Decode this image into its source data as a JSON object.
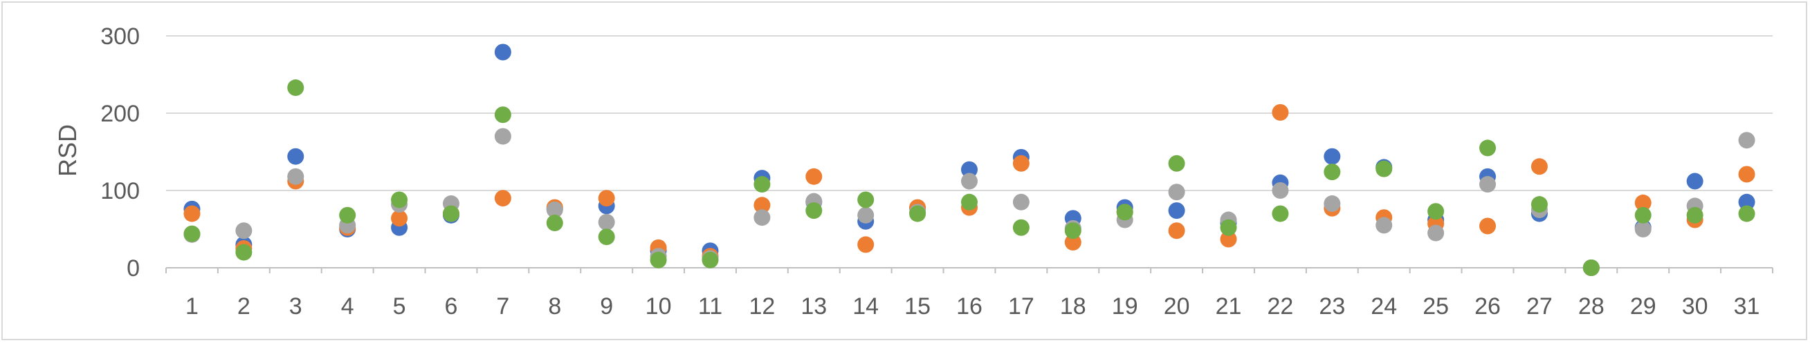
{
  "chart_data": {
    "type": "scatter",
    "title": "",
    "xlabel": "",
    "ylabel": "RSD",
    "xlim": [
      1,
      31
    ],
    "ylim": [
      0,
      300
    ],
    "x": [
      1,
      2,
      3,
      4,
      5,
      6,
      7,
      8,
      9,
      10,
      11,
      12,
      13,
      14,
      15,
      16,
      17,
      18,
      19,
      20,
      21,
      22,
      23,
      24,
      25,
      26,
      27,
      28,
      29,
      30,
      31
    ],
    "x_tick_labels": [
      "1",
      "2",
      "3",
      "4",
      "5",
      "6",
      "7",
      "8",
      "9",
      "10",
      "11",
      "12",
      "13",
      "14",
      "15",
      "16",
      "17",
      "18",
      "19",
      "20",
      "21",
      "22",
      "23",
      "24",
      "25",
      "26",
      "27",
      "28",
      "29",
      "30",
      "31"
    ],
    "y_tick_labels": [
      "0",
      "100",
      "200",
      "300"
    ],
    "y_ticks": [
      0,
      100,
      200,
      300
    ],
    "grid": "horizontal",
    "legend": "none",
    "series": [
      {
        "color": "#4472c4",
        "values": [
          76,
          30,
          144,
          50,
          52,
          68,
          279,
          76,
          80,
          22,
          22,
          116,
          85,
          60,
          77,
          127,
          143,
          64,
          78,
          74,
          58,
          110,
          144,
          130,
          62,
          118,
          70,
          0,
          52,
          112,
          85
        ]
      },
      {
        "color": "#ed7d31",
        "values": [
          70,
          25,
          112,
          52,
          64,
          70,
          90,
          78,
          90,
          26,
          15,
          81,
          118,
          30,
          78,
          78,
          135,
          33,
          72,
          48,
          37,
          201,
          77,
          65,
          57,
          54,
          131,
          0,
          84,
          62,
          121
        ]
      },
      {
        "color": "#a5a5a5",
        "values": [
          43,
          48,
          118,
          55,
          82,
          83,
          170,
          75,
          59,
          15,
          12,
          65,
          86,
          68,
          72,
          112,
          85,
          51,
          62,
          98,
          62,
          100,
          83,
          55,
          45,
          108,
          75,
          0,
          50,
          80,
          165
        ]
      },
      {
        "color": "#70ad47",
        "values": [
          44,
          20,
          233,
          68,
          88,
          70,
          198,
          58,
          40,
          10,
          10,
          108,
          74,
          88,
          70,
          85,
          52,
          48,
          72,
          135,
          52,
          70,
          124,
          128,
          73,
          155,
          82,
          0,
          68,
          68,
          70
        ]
      }
    ]
  }
}
